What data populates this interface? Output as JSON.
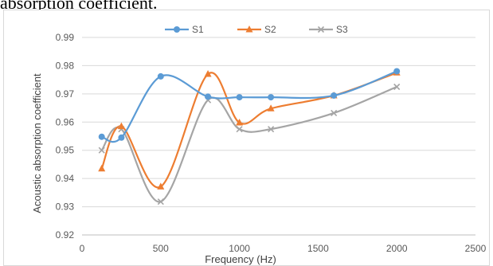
{
  "caption": "absorption coefficient.",
  "chart_data": {
    "type": "line",
    "title": "",
    "xlabel": "Frequency (Hz)",
    "ylabel": "Acoustic absorption coefficient",
    "xlim": [
      0,
      2500
    ],
    "ylim": [
      0.92,
      0.99
    ],
    "x_ticks": [
      "0",
      "500",
      "1000",
      "1500",
      "2000",
      "2500"
    ],
    "y_ticks": [
      "0.92",
      "0.93",
      "0.94",
      "0.95",
      "0.96",
      "0.97",
      "0.98",
      "0.99"
    ],
    "grid": "horizontal",
    "legend_position": "top",
    "smooth": true,
    "x": [
      125,
      250,
      500,
      800,
      1000,
      1200,
      1600,
      2000
    ],
    "series": [
      {
        "name": "S1",
        "color": "#5b9bd5",
        "marker": "circle",
        "values": [
          0.9548,
          0.9545,
          0.9762,
          0.969,
          0.9688,
          0.9688,
          0.9694,
          0.978
        ]
      },
      {
        "name": "S2",
        "color": "#ed7d31",
        "marker": "triangle",
        "values": [
          0.9435,
          0.9585,
          0.9371,
          0.977,
          0.9598,
          0.9648,
          0.9694,
          0.9775
        ]
      },
      {
        "name": "S3",
        "color": "#a5a5a5",
        "marker": "x",
        "values": [
          0.95,
          0.9575,
          0.9318,
          0.9678,
          0.9575,
          0.9575,
          0.9632,
          0.9725
        ]
      }
    ]
  }
}
